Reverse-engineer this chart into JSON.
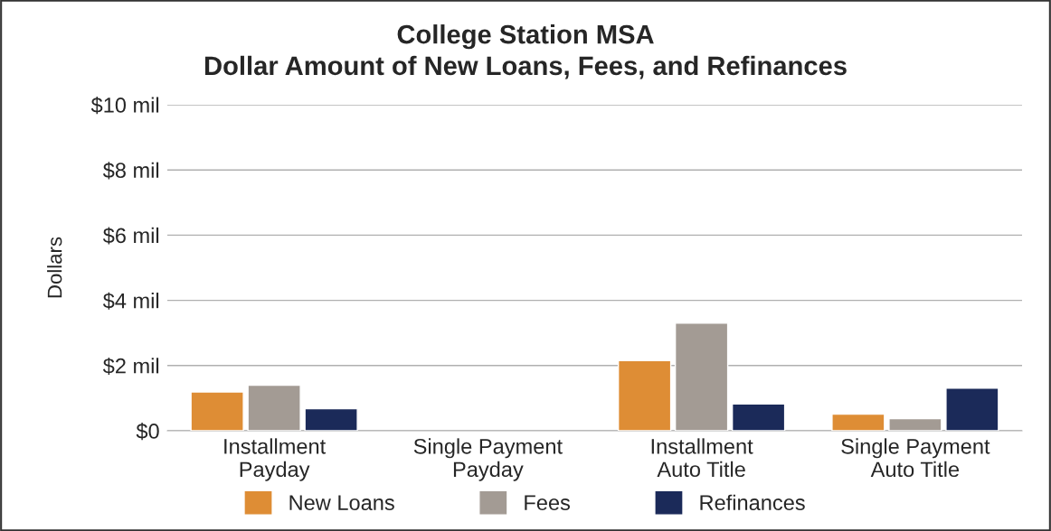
{
  "chart_data": {
    "type": "bar",
    "title": "College Station MSA\nDollar Amount of New Loans, Fees, and Refinances",
    "ylabel": "Dollars",
    "categories": [
      "Installment\nPayday",
      "Single Payment\nPayday",
      "Installment\nAuto Title",
      "Single Payment\nAuto Title"
    ],
    "series": [
      {
        "name": "New Loans",
        "color": "#de8d35",
        "values": [
          1.19,
          null,
          2.15,
          0.51
        ]
      },
      {
        "name": "Fees",
        "color": "#a39b94",
        "values": [
          1.4,
          null,
          3.3,
          0.37
        ]
      },
      {
        "name": "Refinances",
        "color": "#1b2a59",
        "values": [
          0.68,
          null,
          0.82,
          1.31
        ]
      }
    ],
    "ylim": [
      0,
      10
    ],
    "yticks": [
      {
        "value": 0,
        "label": "$0"
      },
      {
        "value": 2,
        "label": "$2 mil"
      },
      {
        "value": 4,
        "label": "$4 mil"
      },
      {
        "value": 6,
        "label": "$6 mil"
      },
      {
        "value": 8,
        "label": "$8 mil"
      },
      {
        "value": 10,
        "label": "$10 mil"
      }
    ],
    "grid": "y",
    "legend": "bottom"
  }
}
